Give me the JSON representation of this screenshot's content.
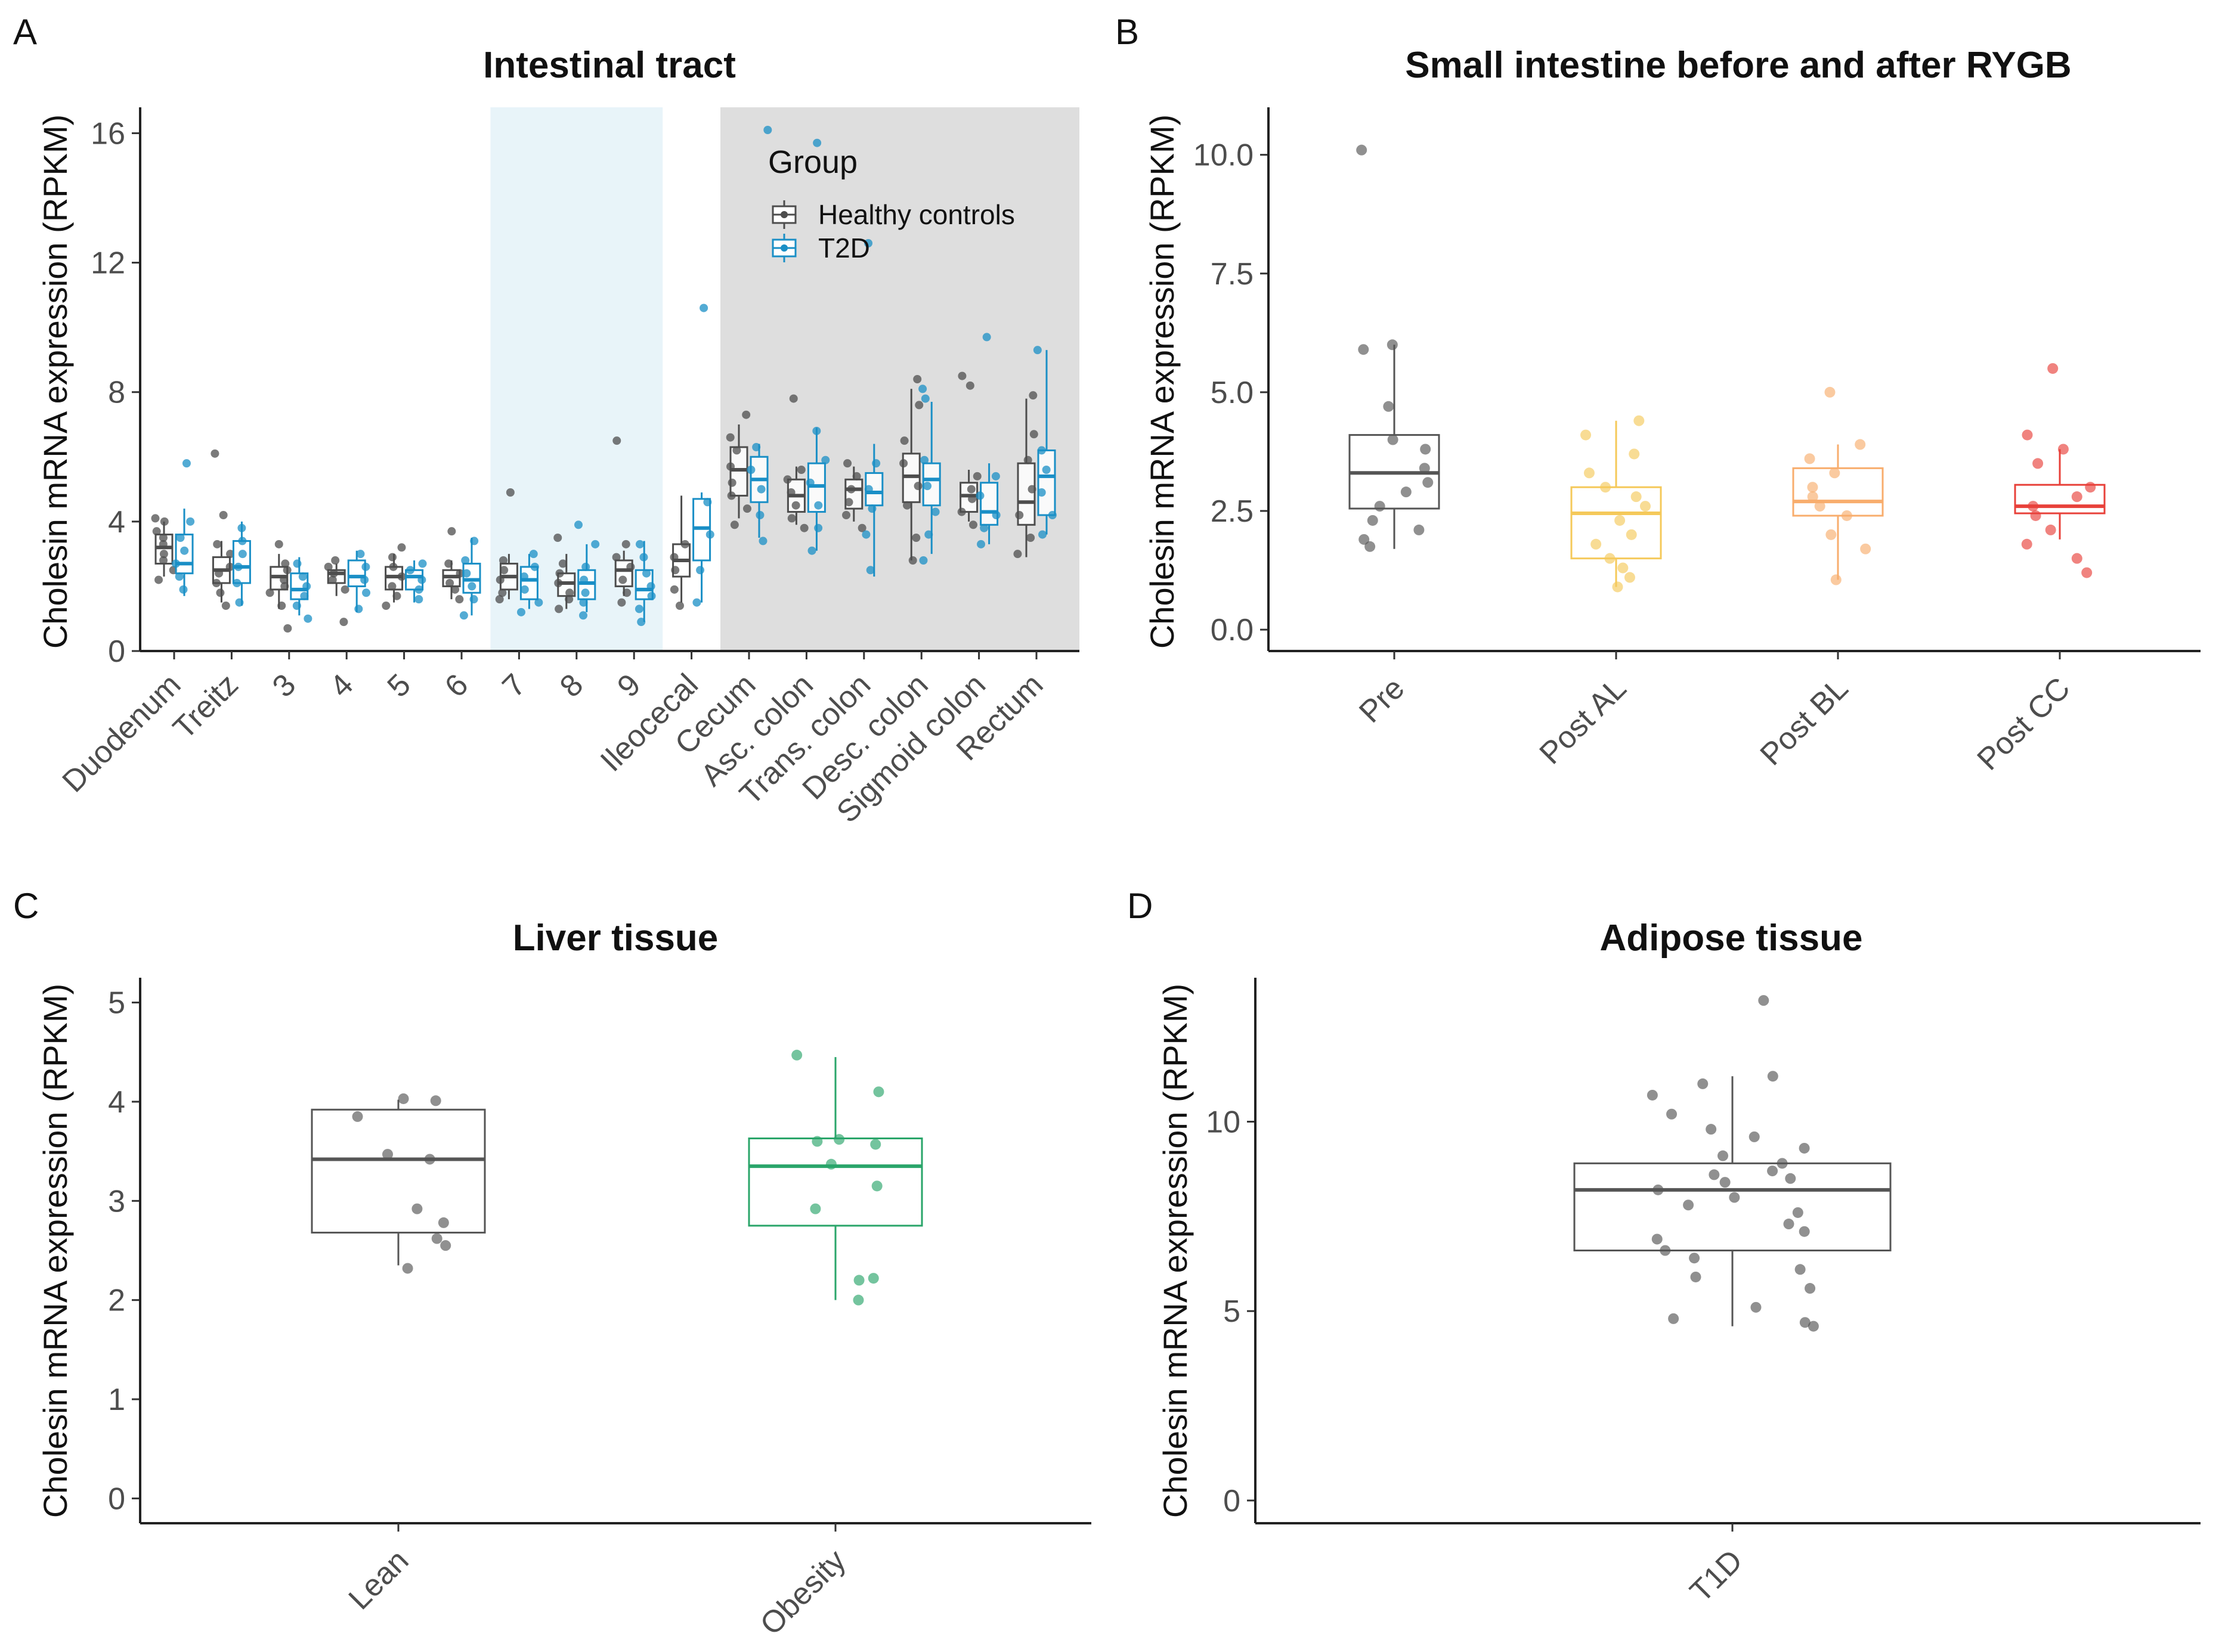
{
  "colors": {
    "healthy": "#4d4d4d",
    "t2d": "#1a8fc6",
    "pre": "#555555",
    "post_al": "#f5c95a",
    "post_bl": "#f8ad6d",
    "post_cc": "#e8413a",
    "lean": "#555555",
    "obesity": "#2aa56a",
    "t1d": "#555555",
    "blue_region": "#e8f4f9",
    "gray_region": "#dedede"
  },
  "chart_data": [
    {
      "id": "A",
      "panel_label": "A",
      "type": "box",
      "title": "Intestinal tract",
      "ylabel": "Cholesin mRNA expression (RPKM)",
      "ylim": [
        0,
        16.8
      ],
      "yticks": [
        0,
        4,
        8,
        12,
        16
      ],
      "categories": [
        "Duodenum",
        "Treitz",
        "3",
        "4",
        "5",
        "6",
        "7",
        "8",
        "9",
        "Ileocecal",
        "Cecum",
        "Asc. colon",
        "Trans. colon",
        "Desc. colon",
        "Sigmoid colon",
        "Rectum"
      ],
      "shaded_regions": [
        {
          "from_index": 6,
          "to_index": 8,
          "color_key": "blue_region"
        },
        {
          "from_index": 10,
          "to_index": 15,
          "color_key": "gray_region"
        }
      ],
      "legend": {
        "title": "Group",
        "entries": [
          "Healthy controls",
          "T2D"
        ]
      },
      "series": [
        {
          "name": "Healthy controls",
          "color_key": "healthy",
          "boxes": [
            [
              2.3,
              2.7,
              3.2,
              3.6,
              4.0
            ],
            [
              1.5,
              2.1,
              2.5,
              2.9,
              3.4
            ],
            [
              1.3,
              1.9,
              2.3,
              2.6,
              3.0
            ],
            [
              1.7,
              2.1,
              2.4,
              2.5,
              2.7
            ],
            [
              1.5,
              1.9,
              2.3,
              2.6,
              3.0
            ],
            [
              1.6,
              2.0,
              2.3,
              2.5,
              2.8
            ],
            [
              1.6,
              1.9,
              2.3,
              2.7,
              3.0
            ],
            [
              1.3,
              1.7,
              2.1,
              2.4,
              3.0
            ],
            [
              1.7,
              2.0,
              2.5,
              2.8,
              3.1
            ],
            [
              1.5,
              2.3,
              2.8,
              3.3,
              4.8
            ],
            [
              4.1,
              4.8,
              5.6,
              6.3,
              7.0
            ],
            [
              3.9,
              4.3,
              4.8,
              5.3,
              5.7
            ],
            [
              4.0,
              4.4,
              5.0,
              5.3,
              5.7
            ],
            [
              2.8,
              4.6,
              5.4,
              6.1,
              8.1
            ],
            [
              4.0,
              4.3,
              4.8,
              5.2,
              5.6
            ],
            [
              2.9,
              3.9,
              4.6,
              5.8,
              7.8
            ]
          ],
          "points": [
            [
              2.2,
              2.5,
              2.8,
              3.0,
              3.3,
              3.5,
              3.7,
              4.0,
              4.1
            ],
            [
              1.4,
              1.8,
              2.1,
              2.4,
              2.6,
              3.0,
              3.3,
              4.2,
              6.1
            ],
            [
              0.7,
              1.4,
              1.8,
              2.0,
              2.2,
              2.5,
              2.7,
              3.3
            ],
            [
              0.9,
              1.9,
              2.2,
              2.4,
              2.6,
              2.8
            ],
            [
              1.4,
              1.7,
              2.0,
              2.3,
              2.6,
              2.9,
              3.2
            ],
            [
              1.6,
              1.9,
              2.1,
              2.4,
              2.7,
              3.7
            ],
            [
              1.6,
              1.8,
              2.2,
              2.5,
              2.8,
              4.9
            ],
            [
              1.3,
              1.6,
              1.8,
              2.1,
              2.4,
              2.7,
              3.5
            ],
            [
              1.5,
              1.8,
              2.2,
              2.6,
              2.9,
              3.3,
              6.5
            ],
            [
              1.4,
              1.9,
              2.5,
              2.9,
              3.3
            ],
            [
              3.9,
              4.4,
              4.8,
              5.2,
              5.7,
              6.2,
              6.6,
              7.3
            ],
            [
              3.8,
              4.1,
              4.5,
              4.9,
              5.3,
              5.6,
              7.8
            ],
            [
              3.8,
              4.2,
              4.6,
              5.0,
              5.4,
              5.8
            ],
            [
              2.8,
              3.5,
              4.5,
              5.1,
              5.8,
              6.5,
              7.6,
              8.4
            ],
            [
              3.9,
              4.3,
              4.7,
              5.0,
              5.4,
              8.2,
              8.5
            ],
            [
              3.0,
              3.5,
              4.2,
              5.0,
              5.9,
              6.7,
              7.9
            ]
          ]
        },
        {
          "name": "T2D",
          "color_key": "t2d",
          "boxes": [
            [
              1.7,
              2.4,
              2.7,
              3.6,
              4.4
            ],
            [
              1.4,
              2.1,
              2.6,
              3.4,
              4.0
            ],
            [
              1.1,
              1.6,
              1.9,
              2.4,
              2.9
            ],
            [
              1.2,
              2.0,
              2.3,
              2.8,
              3.1
            ],
            [
              1.5,
              1.9,
              2.3,
              2.5,
              2.8
            ],
            [
              1.1,
              1.8,
              2.2,
              2.7,
              3.5
            ],
            [
              1.3,
              1.6,
              2.2,
              2.6,
              3.0
            ],
            [
              1.2,
              1.6,
              2.1,
              2.5,
              3.3
            ],
            [
              0.9,
              1.6,
              1.9,
              2.5,
              3.4
            ],
            [
              1.5,
              2.8,
              3.8,
              4.7,
              4.9
            ],
            [
              3.5,
              4.6,
              5.3,
              6.0,
              6.4
            ],
            [
              3.1,
              4.3,
              5.1,
              5.8,
              6.9
            ],
            [
              2.3,
              4.5,
              4.9,
              5.5,
              6.4
            ],
            [
              3.0,
              4.5,
              5.3,
              5.8,
              7.7
            ],
            [
              3.3,
              3.9,
              4.3,
              5.2,
              5.8
            ],
            [
              3.6,
              4.2,
              5.4,
              6.2,
              9.3
            ]
          ],
          "points": [
            [
              1.9,
              2.3,
              2.7,
              3.1,
              3.5,
              4.0,
              5.8
            ],
            [
              1.5,
              2.1,
              2.6,
              3.0,
              3.4,
              3.8
            ],
            [
              1.0,
              1.4,
              1.7,
              2.0,
              2.3,
              2.7
            ],
            [
              1.3,
              1.8,
              2.2,
              2.6,
              3.0
            ],
            [
              1.6,
              1.9,
              2.2,
              2.5,
              2.7
            ],
            [
              1.1,
              1.6,
              2.0,
              2.4,
              2.8,
              3.4
            ],
            [
              1.2,
              1.5,
              1.9,
              2.3,
              2.6,
              3.0
            ],
            [
              1.1,
              1.5,
              1.8,
              2.2,
              2.6,
              3.3,
              3.9
            ],
            [
              0.9,
              1.3,
              1.7,
              2.0,
              2.4,
              2.9,
              3.3
            ],
            [
              1.5,
              2.5,
              3.6,
              4.6,
              10.6
            ],
            [
              3.4,
              4.2,
              5.0,
              5.6,
              6.3,
              16.1
            ],
            [
              3.1,
              3.8,
              4.5,
              5.2,
              5.9,
              6.8,
              15.7
            ],
            [
              2.5,
              3.6,
              4.4,
              5.0,
              5.8,
              12.6
            ],
            [
              2.8,
              3.6,
              4.3,
              5.1,
              5.9,
              7.8,
              8.1
            ],
            [
              3.3,
              3.8,
              4.2,
              4.8,
              5.4,
              9.7
            ],
            [
              3.6,
              4.2,
              4.9,
              5.6,
              6.2,
              9.3
            ]
          ]
        }
      ]
    },
    {
      "id": "B",
      "panel_label": "B",
      "type": "box",
      "title": "Small intestine before and after RYGB",
      "ylabel": "Cholesin mRNA expression (RPKM)",
      "ylim": [
        -0.45,
        11.0
      ],
      "yticks": [
        0.0,
        2.5,
        5.0,
        7.5,
        10.0
      ],
      "ytick_labels": [
        "0.0",
        "2.5",
        "5.0",
        "7.5",
        "10.0"
      ],
      "categories": [
        "Pre",
        "Post AL",
        "Post BL",
        "Post CC"
      ],
      "color_keys": [
        "pre",
        "post_al",
        "post_bl",
        "post_cc"
      ],
      "boxes": [
        [
          1.7,
          2.55,
          3.3,
          4.1,
          6.0
        ],
        [
          0.9,
          1.5,
          2.45,
          3.0,
          4.4
        ],
        [
          1.05,
          2.4,
          2.7,
          3.4,
          3.9
        ],
        [
          1.9,
          2.45,
          2.6,
          3.05,
          3.8
        ]
      ],
      "points": [
        [
          1.75,
          1.9,
          2.1,
          2.3,
          2.6,
          2.9,
          3.1,
          3.4,
          3.8,
          4.0,
          4.7,
          5.9,
          6.0,
          10.1
        ],
        [
          0.9,
          1.1,
          1.3,
          1.5,
          1.8,
          2.0,
          2.3,
          2.6,
          2.8,
          3.0,
          3.3,
          3.7,
          4.1,
          4.4
        ],
        [
          1.05,
          1.7,
          2.0,
          2.4,
          2.6,
          2.8,
          3.0,
          3.3,
          3.6,
          3.9,
          5.0
        ],
        [
          1.2,
          1.5,
          1.8,
          2.1,
          2.4,
          2.6,
          2.8,
          3.0,
          3.5,
          3.8,
          4.1,
          5.5
        ]
      ]
    },
    {
      "id": "C",
      "panel_label": "C",
      "type": "box",
      "title": "Liver tissue",
      "ylabel": "Cholesin mRNA expression (RPKM)",
      "ylim": [
        -0.25,
        5.25
      ],
      "yticks": [
        0,
        1,
        2,
        3,
        4,
        5
      ],
      "categories": [
        "Lean",
        "Obesity"
      ],
      "color_keys": [
        "lean",
        "obesity"
      ],
      "boxes": [
        [
          2.35,
          2.68,
          3.42,
          3.92,
          4.02
        ],
        [
          2.0,
          2.75,
          3.35,
          3.63,
          4.45
        ]
      ],
      "points": [
        [
          2.32,
          2.55,
          2.62,
          2.78,
          2.92,
          3.42,
          3.47,
          3.85,
          4.01,
          4.03
        ],
        [
          2.0,
          2.2,
          2.22,
          2.92,
          3.15,
          3.37,
          3.57,
          3.6,
          3.62,
          4.1,
          4.47
        ]
      ]
    },
    {
      "id": "D",
      "panel_label": "D",
      "type": "box",
      "title": "Adipose tissue",
      "ylabel": "Cholesin mRNA expression (RPKM)",
      "ylim": [
        -0.6,
        13.8
      ],
      "yticks": [
        0,
        5,
        10
      ],
      "categories": [
        "T1D"
      ],
      "color_keys": [
        "t1d"
      ],
      "boxes": [
        [
          4.6,
          6.6,
          8.2,
          8.9,
          11.2
        ]
      ],
      "points": [
        [
          4.6,
          4.7,
          4.8,
          5.1,
          5.6,
          5.9,
          6.1,
          6.4,
          6.6,
          6.9,
          7.1,
          7.3,
          7.6,
          7.8,
          8.0,
          8.2,
          8.4,
          8.5,
          8.6,
          8.7,
          8.9,
          9.1,
          9.3,
          9.6,
          9.8,
          10.2,
          10.7,
          11.0,
          11.2,
          13.2
        ]
      ]
    }
  ]
}
